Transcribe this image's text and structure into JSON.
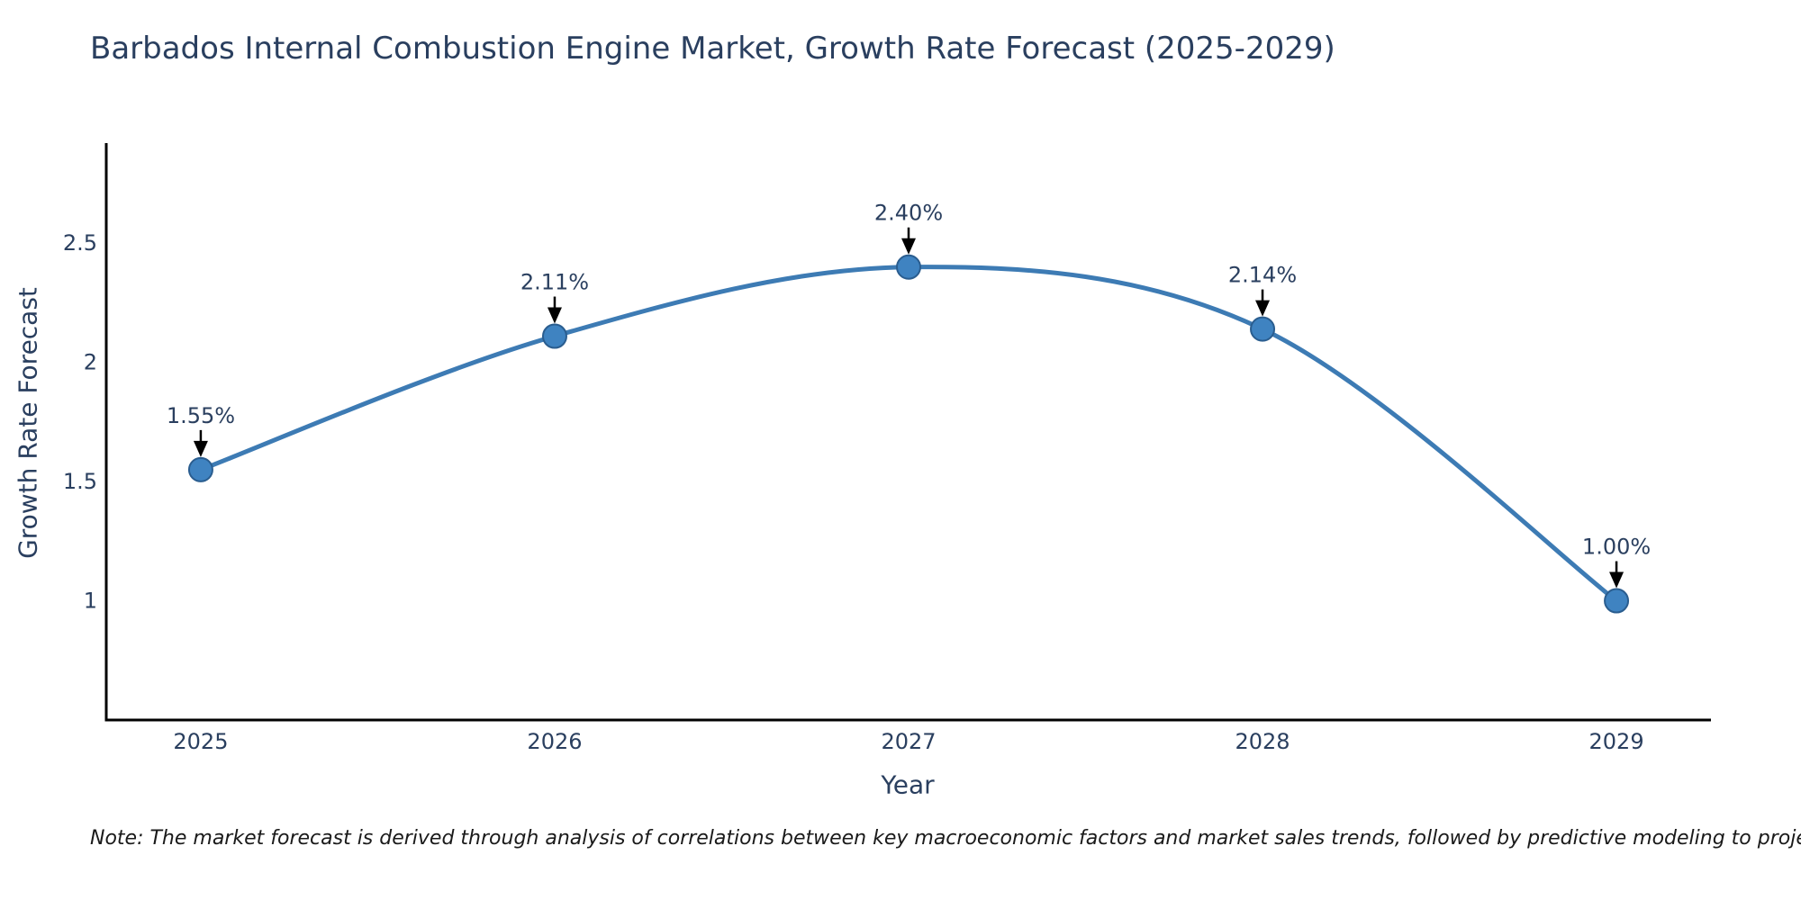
{
  "footnote": {
    "text": "Note: The market forecast is derived through analysis of correlations between key macroeconomic factors and market sales trends, followed by predictive modeling to project future sales."
  },
  "chart_data": {
    "type": "line",
    "title": "Barbados Internal Combustion Engine Market, Growth Rate Forecast (2025-2029)",
    "xlabel": "Year",
    "ylabel": "Growth Rate Forecast",
    "x": [
      2025,
      2026,
      2027,
      2028,
      2029
    ],
    "y": [
      1.55,
      2.11,
      2.4,
      2.14,
      1.0
    ],
    "point_labels": [
      "1.55%",
      "2.11%",
      "2.40%",
      "2.14%",
      "1.00%"
    ],
    "xtick_labels": [
      "2025",
      "2026",
      "2027",
      "2028",
      "2029"
    ],
    "yticks": [
      1,
      1.5,
      2,
      2.5
    ],
    "ytick_labels": [
      "1",
      "1.5",
      "2",
      "2.5"
    ],
    "xlim": [
      2024.733,
      2029.267
    ],
    "ylim": [
      0.5,
      2.92
    ],
    "line_shape": "spline",
    "grid": false,
    "legend": "none",
    "colors": {
      "line": "#3d7bb4",
      "marker_fill": "#3f83c1",
      "marker_edge": "#2a5d8f",
      "arrow": "#000000",
      "label_text": "#2a3f5f",
      "tick_text": "#2a3f5f",
      "axis_line": "#000000"
    }
  }
}
